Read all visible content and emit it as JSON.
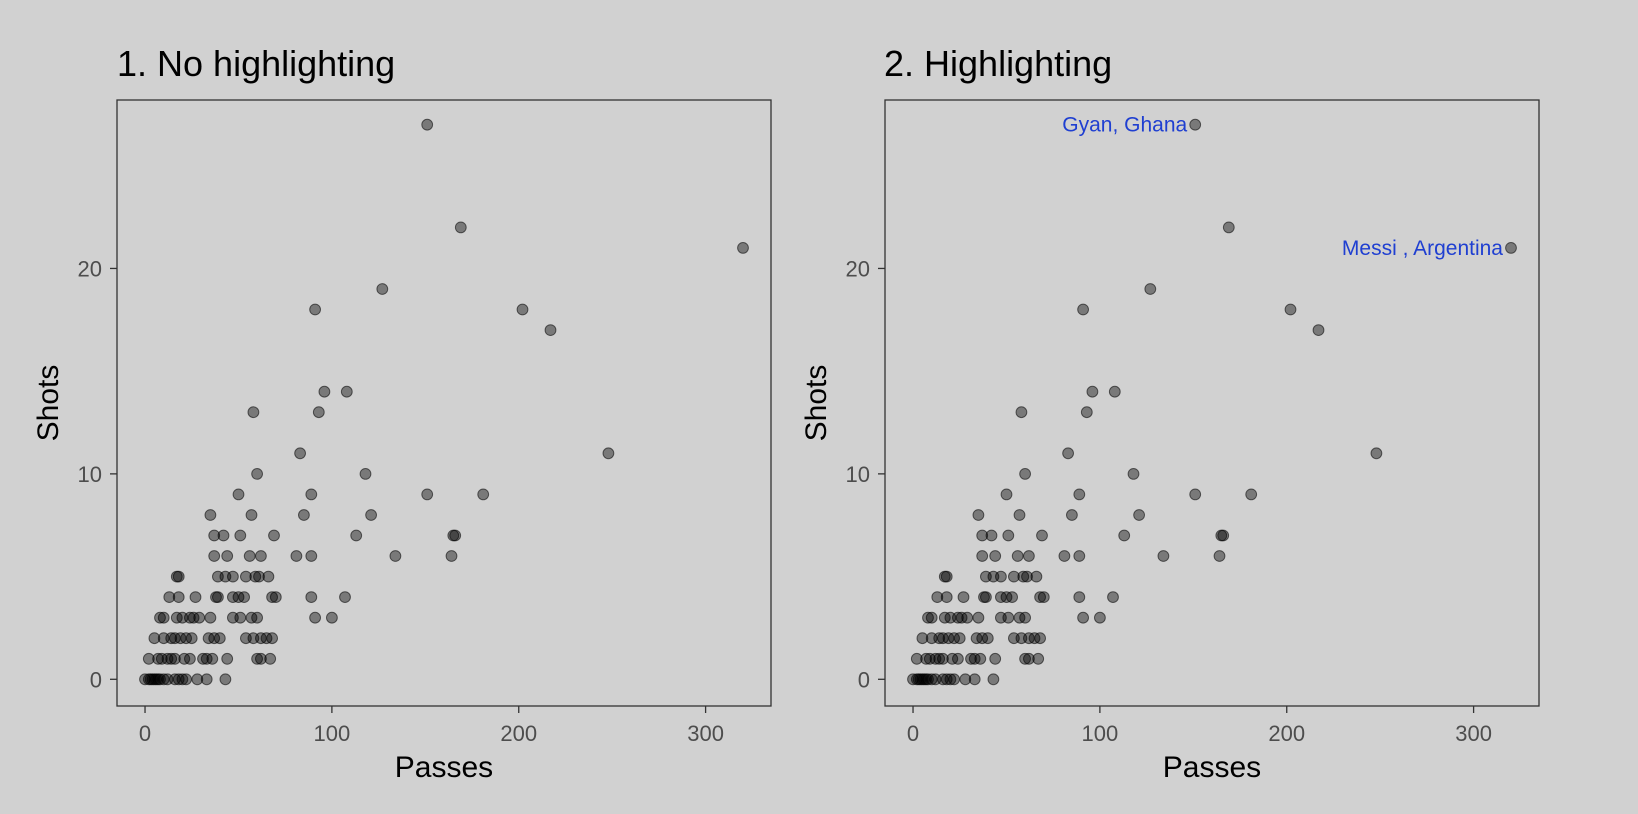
{
  "chart_data": [
    {
      "type": "scatter",
      "title": "1. No highlighting",
      "xlabel": "Passes",
      "ylabel": "Shots",
      "xlim": [
        -15,
        335
      ],
      "ylim": [
        -1.3,
        28.2
      ],
      "xticks": [
        0,
        100,
        200,
        300
      ],
      "yticks": [
        0,
        10,
        20
      ],
      "grid": false,
      "point_color": "#000000",
      "point_opacity": 0.42,
      "annotations": [],
      "points": [
        [
          151,
          27
        ],
        [
          169,
          22
        ],
        [
          320,
          21
        ],
        [
          127,
          19
        ],
        [
          91,
          18
        ],
        [
          202,
          18
        ],
        [
          217,
          17
        ],
        [
          58,
          13
        ],
        [
          93,
          13
        ],
        [
          96,
          14
        ],
        [
          108,
          14
        ],
        [
          248,
          11
        ],
        [
          83,
          11
        ],
        [
          60,
          10
        ],
        [
          118,
          10
        ],
        [
          50,
          9
        ],
        [
          89,
          9
        ],
        [
          151,
          9
        ],
        [
          181,
          9
        ],
        [
          35,
          8
        ],
        [
          57,
          8
        ],
        [
          85,
          8
        ],
        [
          121,
          8
        ],
        [
          37,
          7
        ],
        [
          42,
          7
        ],
        [
          51,
          7
        ],
        [
          69,
          7
        ],
        [
          113,
          7
        ],
        [
          165,
          7
        ],
        [
          166,
          7
        ],
        [
          37,
          6
        ],
        [
          44,
          6
        ],
        [
          56,
          6
        ],
        [
          62,
          6
        ],
        [
          81,
          6
        ],
        [
          89,
          6
        ],
        [
          134,
          6
        ],
        [
          164,
          6
        ],
        [
          17,
          5
        ],
        [
          18,
          5
        ],
        [
          39,
          5
        ],
        [
          43,
          5
        ],
        [
          47,
          5
        ],
        [
          54,
          5
        ],
        [
          59,
          5
        ],
        [
          61,
          5
        ],
        [
          66,
          5
        ],
        [
          13,
          4
        ],
        [
          18,
          4
        ],
        [
          27,
          4
        ],
        [
          38,
          4
        ],
        [
          39,
          4
        ],
        [
          47,
          4
        ],
        [
          50,
          4
        ],
        [
          53,
          4
        ],
        [
          68,
          4
        ],
        [
          70,
          4
        ],
        [
          89,
          4
        ],
        [
          107,
          4
        ],
        [
          8,
          3
        ],
        [
          10,
          3
        ],
        [
          17,
          3
        ],
        [
          20,
          3
        ],
        [
          24,
          3
        ],
        [
          26,
          3
        ],
        [
          29,
          3
        ],
        [
          35,
          3
        ],
        [
          47,
          3
        ],
        [
          51,
          3
        ],
        [
          57,
          3
        ],
        [
          60,
          3
        ],
        [
          91,
          3
        ],
        [
          100,
          3
        ],
        [
          5,
          2
        ],
        [
          10,
          2
        ],
        [
          14,
          2
        ],
        [
          16,
          2
        ],
        [
          19,
          2
        ],
        [
          22,
          2
        ],
        [
          25,
          2
        ],
        [
          34,
          2
        ],
        [
          37,
          2
        ],
        [
          40,
          2
        ],
        [
          54,
          2
        ],
        [
          58,
          2
        ],
        [
          62,
          2
        ],
        [
          65,
          2
        ],
        [
          68,
          2
        ],
        [
          2,
          1
        ],
        [
          7,
          1
        ],
        [
          9,
          1
        ],
        [
          12,
          1
        ],
        [
          14,
          1
        ],
        [
          16,
          1
        ],
        [
          21,
          1
        ],
        [
          24,
          1
        ],
        [
          31,
          1
        ],
        [
          33,
          1
        ],
        [
          36,
          1
        ],
        [
          44,
          1
        ],
        [
          60,
          1
        ],
        [
          62,
          1
        ],
        [
          67,
          1
        ],
        [
          0,
          0
        ],
        [
          2,
          0
        ],
        [
          3,
          0
        ],
        [
          4,
          0
        ],
        [
          5,
          0
        ],
        [
          6,
          0
        ],
        [
          7,
          0
        ],
        [
          8,
          0
        ],
        [
          10,
          0
        ],
        [
          12,
          0
        ],
        [
          16,
          0
        ],
        [
          18,
          0
        ],
        [
          20,
          0
        ],
        [
          22,
          0
        ],
        [
          28,
          0
        ],
        [
          33,
          0
        ],
        [
          43,
          0
        ]
      ]
    },
    {
      "type": "scatter",
      "title": "2. Highlighting",
      "xlabel": "Passes",
      "ylabel": "Shots",
      "xlim": [
        -15,
        335
      ],
      "ylim": [
        -1.3,
        28.2
      ],
      "xticks": [
        0,
        100,
        200,
        300
      ],
      "yticks": [
        0,
        10,
        20
      ],
      "grid": false,
      "point_color": "#000000",
      "point_opacity": 0.42,
      "annotations": [
        {
          "text": "Gyan, Ghana",
          "x": 151,
          "y": 27,
          "color": "#1f3fd1"
        },
        {
          "text": "Messi , Argentina",
          "x": 320,
          "y": 21,
          "color": "#1f3fd1"
        }
      ],
      "points": [
        [
          151,
          27
        ],
        [
          169,
          22
        ],
        [
          320,
          21
        ],
        [
          127,
          19
        ],
        [
          91,
          18
        ],
        [
          202,
          18
        ],
        [
          217,
          17
        ],
        [
          58,
          13
        ],
        [
          93,
          13
        ],
        [
          96,
          14
        ],
        [
          108,
          14
        ],
        [
          248,
          11
        ],
        [
          83,
          11
        ],
        [
          60,
          10
        ],
        [
          118,
          10
        ],
        [
          50,
          9
        ],
        [
          89,
          9
        ],
        [
          151,
          9
        ],
        [
          181,
          9
        ],
        [
          35,
          8
        ],
        [
          57,
          8
        ],
        [
          85,
          8
        ],
        [
          121,
          8
        ],
        [
          37,
          7
        ],
        [
          42,
          7
        ],
        [
          51,
          7
        ],
        [
          69,
          7
        ],
        [
          113,
          7
        ],
        [
          165,
          7
        ],
        [
          166,
          7
        ],
        [
          37,
          6
        ],
        [
          44,
          6
        ],
        [
          56,
          6
        ],
        [
          62,
          6
        ],
        [
          81,
          6
        ],
        [
          89,
          6
        ],
        [
          134,
          6
        ],
        [
          164,
          6
        ],
        [
          17,
          5
        ],
        [
          18,
          5
        ],
        [
          39,
          5
        ],
        [
          43,
          5
        ],
        [
          47,
          5
        ],
        [
          54,
          5
        ],
        [
          59,
          5
        ],
        [
          61,
          5
        ],
        [
          66,
          5
        ],
        [
          13,
          4
        ],
        [
          18,
          4
        ],
        [
          27,
          4
        ],
        [
          38,
          4
        ],
        [
          39,
          4
        ],
        [
          47,
          4
        ],
        [
          50,
          4
        ],
        [
          53,
          4
        ],
        [
          68,
          4
        ],
        [
          70,
          4
        ],
        [
          89,
          4
        ],
        [
          107,
          4
        ],
        [
          8,
          3
        ],
        [
          10,
          3
        ],
        [
          17,
          3
        ],
        [
          20,
          3
        ],
        [
          24,
          3
        ],
        [
          26,
          3
        ],
        [
          29,
          3
        ],
        [
          35,
          3
        ],
        [
          47,
          3
        ],
        [
          51,
          3
        ],
        [
          57,
          3
        ],
        [
          60,
          3
        ],
        [
          91,
          3
        ],
        [
          100,
          3
        ],
        [
          5,
          2
        ],
        [
          10,
          2
        ],
        [
          14,
          2
        ],
        [
          16,
          2
        ],
        [
          19,
          2
        ],
        [
          22,
          2
        ],
        [
          25,
          2
        ],
        [
          34,
          2
        ],
        [
          37,
          2
        ],
        [
          40,
          2
        ],
        [
          54,
          2
        ],
        [
          58,
          2
        ],
        [
          62,
          2
        ],
        [
          65,
          2
        ],
        [
          68,
          2
        ],
        [
          2,
          1
        ],
        [
          7,
          1
        ],
        [
          9,
          1
        ],
        [
          12,
          1
        ],
        [
          14,
          1
        ],
        [
          16,
          1
        ],
        [
          21,
          1
        ],
        [
          24,
          1
        ],
        [
          31,
          1
        ],
        [
          33,
          1
        ],
        [
          36,
          1
        ],
        [
          44,
          1
        ],
        [
          60,
          1
        ],
        [
          62,
          1
        ],
        [
          67,
          1
        ],
        [
          0,
          0
        ],
        [
          2,
          0
        ],
        [
          3,
          0
        ],
        [
          4,
          0
        ],
        [
          5,
          0
        ],
        [
          6,
          0
        ],
        [
          7,
          0
        ],
        [
          8,
          0
        ],
        [
          10,
          0
        ],
        [
          12,
          0
        ],
        [
          16,
          0
        ],
        [
          18,
          0
        ],
        [
          20,
          0
        ],
        [
          22,
          0
        ],
        [
          28,
          0
        ],
        [
          33,
          0
        ],
        [
          43,
          0
        ]
      ]
    }
  ]
}
